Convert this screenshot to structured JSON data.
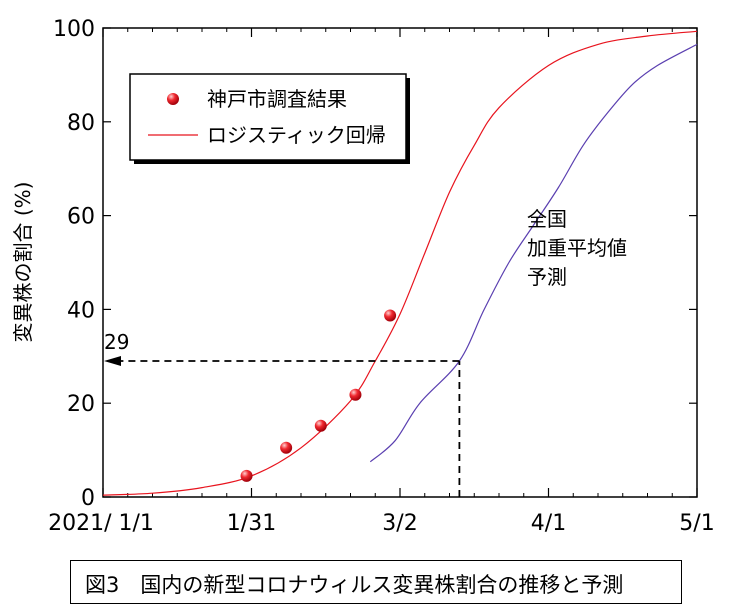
{
  "chart_data": {
    "type": "line",
    "ylabel": "変異株の割合 (%)",
    "xlabel": "",
    "ylim": [
      0,
      100
    ],
    "y_ticks": [
      0,
      20,
      40,
      60,
      80,
      100
    ],
    "x_ticks": [
      {
        "label": "2021/ 1/1",
        "day": 0
      },
      {
        "label": "1/31",
        "day": 30
      },
      {
        "label": "3/2",
        "day": 60
      },
      {
        "label": "4/1",
        "day": 90
      },
      {
        "label": "5/1",
        "day": 120
      }
    ],
    "xlim_dates": [
      "2021-01-01",
      "2021-05-01"
    ],
    "grid": false,
    "legend_position": "top-left",
    "series": [
      {
        "name": "神戸市調査結果",
        "kind": "scatter",
        "color": "#e8141e",
        "points": [
          {
            "x": "2021-01-30",
            "y": 4.5
          },
          {
            "x": "2021-02-07",
            "y": 10.5
          },
          {
            "x": "2021-02-14",
            "y": 15.2
          },
          {
            "x": "2021-02-21",
            "y": 21.8
          },
          {
            "x": "2021-02-28",
            "y": 38.7
          }
        ]
      },
      {
        "name": "ロジスティック回帰",
        "kind": "line",
        "color": "#e8141e",
        "points": [
          {
            "x": "2021-01-01",
            "y": 0.4
          },
          {
            "x": "2021-01-11",
            "y": 0.8
          },
          {
            "x": "2021-01-21",
            "y": 2.0
          },
          {
            "x": "2021-01-31",
            "y": 4.5
          },
          {
            "x": "2021-02-10",
            "y": 10.5
          },
          {
            "x": "2021-02-20",
            "y": 20.5
          },
          {
            "x": "2021-02-25",
            "y": 29.0
          },
          {
            "x": "2021-03-02",
            "y": 39.0
          },
          {
            "x": "2021-03-07",
            "y": 52.0
          },
          {
            "x": "2021-03-12",
            "y": 65.0
          },
          {
            "x": "2021-03-17",
            "y": 75.0
          },
          {
            "x": "2021-03-22",
            "y": 83.0
          },
          {
            "x": "2021-04-01",
            "y": 92.0
          },
          {
            "x": "2021-04-11",
            "y": 96.5
          },
          {
            "x": "2021-04-21",
            "y": 98.3
          },
          {
            "x": "2021-05-01",
            "y": 99.3
          }
        ]
      },
      {
        "name": "全国加重平均値予測",
        "kind": "line",
        "color": "#5a3fb0",
        "points": [
          {
            "x": "2021-02-24",
            "y": 7.5
          },
          {
            "x": "2021-03-01",
            "y": 12.0
          },
          {
            "x": "2021-03-06",
            "y": 20.0
          },
          {
            "x": "2021-03-14",
            "y": 29.0
          },
          {
            "x": "2021-03-19",
            "y": 40.0
          },
          {
            "x": "2021-03-24",
            "y": 50.0
          },
          {
            "x": "2021-03-29",
            "y": 58.0
          },
          {
            "x": "2021-04-03",
            "y": 66.0
          },
          {
            "x": "2021-04-08",
            "y": 75.0
          },
          {
            "x": "2021-04-13",
            "y": 82.0
          },
          {
            "x": "2021-04-18",
            "y": 88.0
          },
          {
            "x": "2021-04-23",
            "y": 92.0
          },
          {
            "x": "2021-05-01",
            "y": 96.5
          }
        ]
      }
    ],
    "annotations": {
      "national_label_lines": [
        "全国",
        "加重平均値",
        "予測"
      ],
      "arrow_value_label": "29",
      "arrow_value": 29,
      "arrow_date": "2021-03-14"
    }
  },
  "legend": {
    "items": [
      {
        "label": "神戸市調査結果",
        "marker": "circle"
      },
      {
        "label": "ロジスティック回帰",
        "marker": "line"
      }
    ]
  },
  "caption": "図3　国内の新型コロナウィルス変異株割合の推移と予測",
  "colors": {
    "red": "#e8141e",
    "purple": "#5a3fb0",
    "axis": "#000000"
  }
}
